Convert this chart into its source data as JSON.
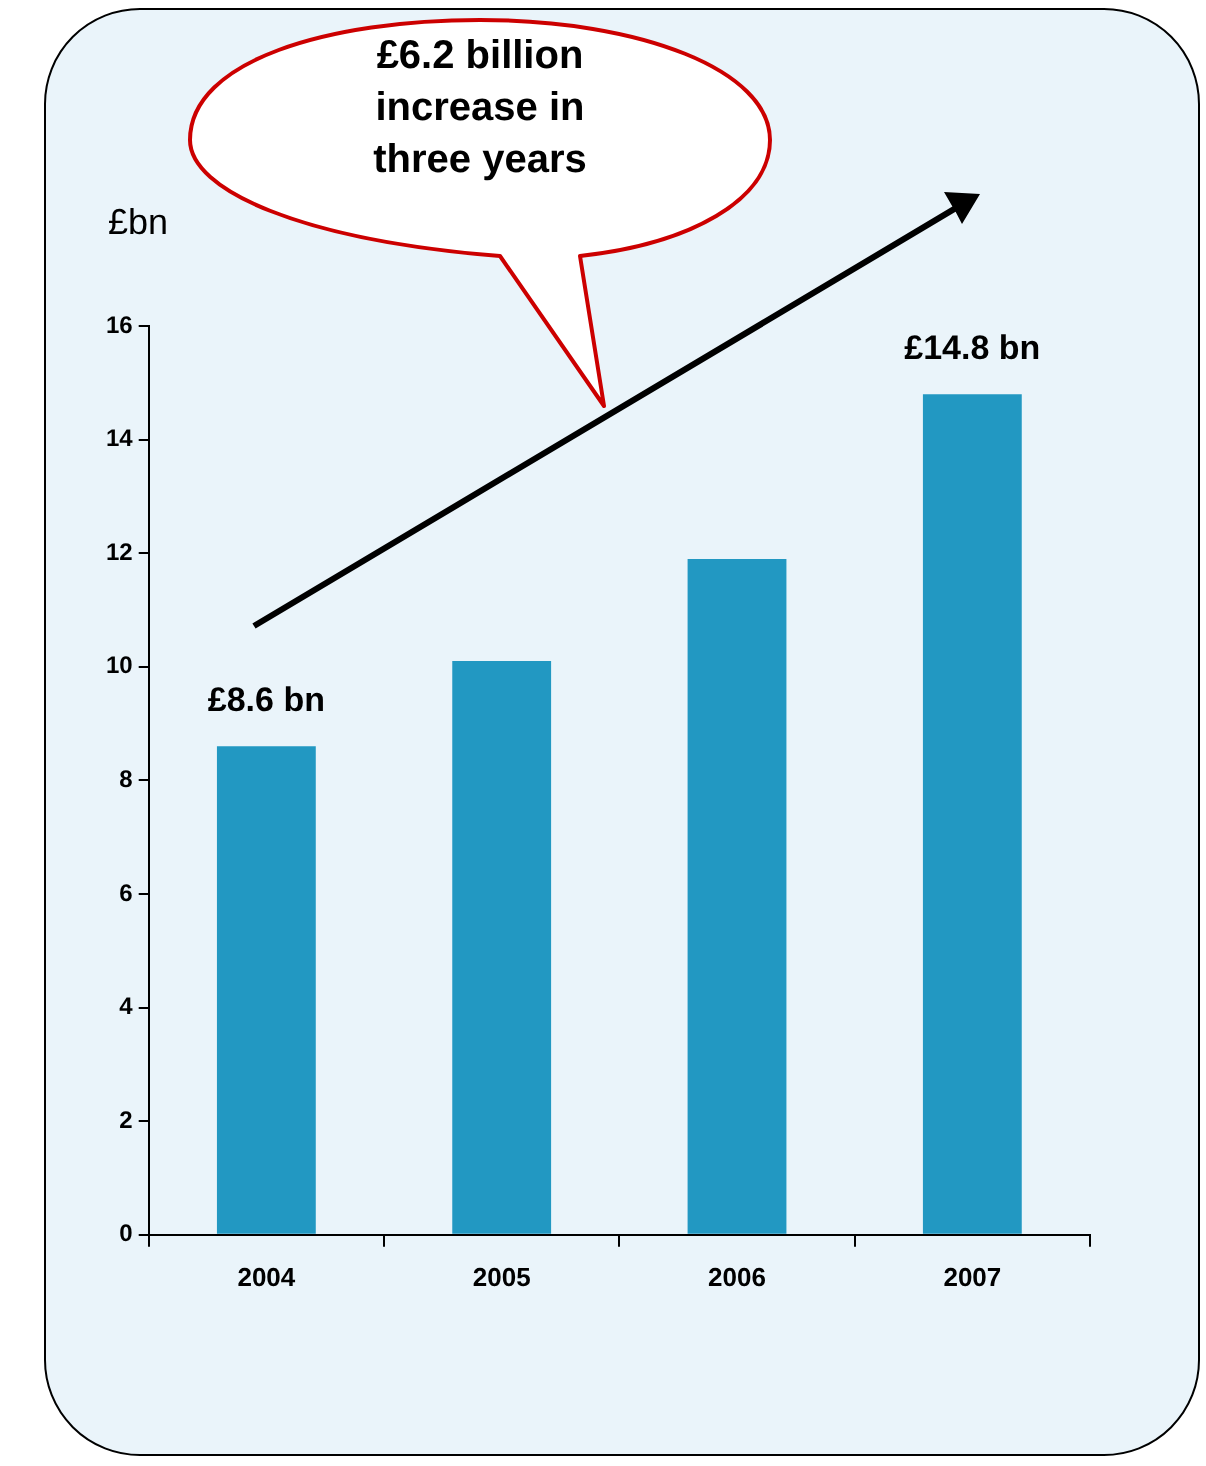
{
  "chart_data": {
    "type": "bar",
    "ylabel": "£bn",
    "categories": [
      "2004",
      "2005",
      "2006",
      "2007"
    ],
    "values": [
      8.6,
      10.1,
      11.9,
      14.8
    ],
    "value_labels": [
      "£8.6 bn",
      null,
      null,
      "£14.8 bn"
    ],
    "color": "#2298c2",
    "ylim": [
      0,
      16
    ],
    "yticks": [
      0,
      2,
      4,
      6,
      8,
      10,
      12,
      14,
      16
    ],
    "annotations": [
      "£6.2 billion increase in three years"
    ]
  }
}
